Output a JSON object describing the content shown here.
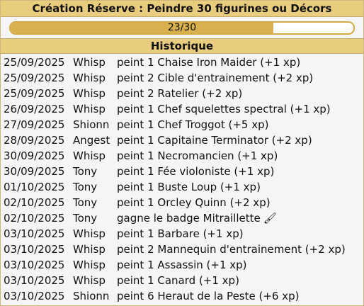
{
  "header": {
    "title": "Création Réserve : Peindre 30 figurines ou Décors"
  },
  "progress": {
    "label": "23/30",
    "current": 23,
    "total": 30
  },
  "history": {
    "title": "Historique",
    "rows": [
      {
        "date": "25/09/2025",
        "user": "Whisp",
        "action": "peint 1 Chaise Iron Maider (+1 xp)"
      },
      {
        "date": "25/09/2025",
        "user": "Whisp",
        "action": "peint 2 Cible d'entrainement (+2 xp)"
      },
      {
        "date": "25/09/2025",
        "user": "Whisp",
        "action": "peint 2 Ratelier (+2 xp)"
      },
      {
        "date": "26/09/2025",
        "user": "Whisp",
        "action": "peint 1 Chef squelettes spectral (+1 xp)"
      },
      {
        "date": "27/09/2025",
        "user": "Shionn",
        "action": "peint 1 Chef Troggot (+5 xp)"
      },
      {
        "date": "28/09/2025",
        "user": "Angest",
        "action": "peint 1 Capitaine Terminator (+2 xp)"
      },
      {
        "date": "30/09/2025",
        "user": "Whisp",
        "action": "peint 1 Necromancien (+1 xp)"
      },
      {
        "date": "30/09/2025",
        "user": "Tony",
        "action": "peint 1 Fée violoniste (+1 xp)"
      },
      {
        "date": "01/10/2025",
        "user": "Tony",
        "action": "peint 1 Buste Loup (+1 xp)"
      },
      {
        "date": "02/10/2025",
        "user": "Tony",
        "action": "peint 1 Orcley Quinn (+2 xp)"
      },
      {
        "date": "02/10/2025",
        "user": "Tony",
        "action": "gagne le badge Mitraillette",
        "icon": "paintbrush-icon",
        "glyph": "🖌"
      },
      {
        "date": "03/10/2025",
        "user": "Whisp",
        "action": "peint 1 Barbare (+1 xp)"
      },
      {
        "date": "03/10/2025",
        "user": "Whisp",
        "action": "peint 2 Mannequin d'entrainement (+2 xp)"
      },
      {
        "date": "03/10/2025",
        "user": "Whisp",
        "action": "peint 1 Assassin (+1 xp)"
      },
      {
        "date": "03/10/2025",
        "user": "Whisp",
        "action": "peint 1 Canard (+1 xp)"
      },
      {
        "date": "03/10/2025",
        "user": "Shionn",
        "action": "peint 6 Heraut de la Peste (+6 xp)"
      }
    ]
  }
}
